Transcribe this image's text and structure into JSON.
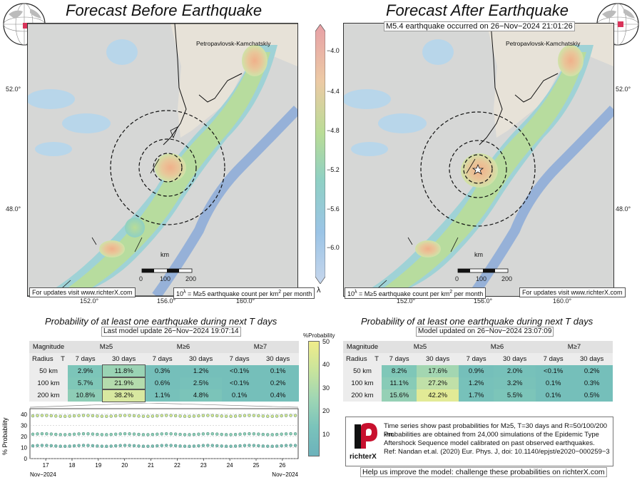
{
  "left": {
    "title": "Forecast Before Earthquake",
    "city": "Petropavlovsk-Kamchatskiy",
    "lat_ticks": [
      "52.0°",
      "48.0°"
    ],
    "lon_ticks": [
      "152.0°",
      "156.0°",
      "160.0°"
    ],
    "scale_unit": "km",
    "scale_ticks": [
      "0",
      "100",
      "200"
    ],
    "note_updates": "For updates visit www.richterX.com",
    "note_units_pre": "10",
    "note_units_sup": "λ",
    "note_units_mid": " = M≥5 earthquake count per km",
    "note_units_sup2": "2",
    "note_units_post": " per month",
    "prob_title": "Probability of at least one earthquake during next T days",
    "update_line": "Last model update 26−Nov−2024 19:07:14"
  },
  "right": {
    "title": "Forecast After Earthquake",
    "event": "M5.4 earthquake occurred on 26−Nov−2024 21:01:26",
    "city": "Petropavlovsk-Kamchatskiy",
    "lat_ticks": [
      "52.0°",
      "48.0°"
    ],
    "lon_ticks": [
      "152.0°",
      "156.0°",
      "160.0°"
    ],
    "scale_unit": "km",
    "scale_ticks": [
      "0",
      "100",
      "200"
    ],
    "note_updates": "For updates visit www.richterX.com",
    "prob_title": "Probability of at least one earthquake during next T days",
    "update_line": "Model updated on 26−Nov−2024 23:07:09"
  },
  "colorbar": {
    "ticks": [
      "−4.0",
      "−4.4",
      "−4.8",
      "−5.2",
      "−5.6",
      "−6.0"
    ],
    "symbol": "λ"
  },
  "table_headers": {
    "magnitude": "Magnitude",
    "radius": "Radius",
    "t": "T",
    "m5": "M≥5",
    "m6": "M≥6",
    "m7": "M≥7",
    "d7": "7 days",
    "d30": "30 days"
  },
  "table_left": {
    "rows": [
      {
        "radius": "50 km",
        "cells": [
          "2.9%",
          "11.8%",
          "0.3%",
          "1.2%",
          "<0.1%",
          "0.1%"
        ]
      },
      {
        "radius": "100 km",
        "cells": [
          "5.7%",
          "21.9%",
          "0.6%",
          "2.5%",
          "<0.1%",
          "0.2%"
        ]
      },
      {
        "radius": "200 km",
        "cells": [
          "10.8%",
          "38.2%",
          "1.1%",
          "4.8%",
          "0.1%",
          "0.4%"
        ]
      }
    ]
  },
  "table_right": {
    "rows": [
      {
        "radius": "50 km",
        "cells": [
          "8.2%",
          "17.6%",
          "0.9%",
          "2.0%",
          "<0.1%",
          "0.2%"
        ]
      },
      {
        "radius": "100 km",
        "cells": [
          "11.1%",
          "27.2%",
          "1.2%",
          "3.2%",
          "0.1%",
          "0.3%"
        ]
      },
      {
        "radius": "200 km",
        "cells": [
          "15.6%",
          "42.2%",
          "1.7%",
          "5.5%",
          "0.1%",
          "0.5%"
        ]
      }
    ]
  },
  "prob_colorbar": {
    "label": "%Probability",
    "ticks": [
      "50",
      "40",
      "30",
      "20",
      "10"
    ]
  },
  "chart_data": {
    "type": "line",
    "ylabel": "% Probability",
    "y_ticks": [
      "0",
      "10",
      "20",
      "30",
      "40"
    ],
    "ylim": [
      0,
      45
    ],
    "x_ticks": [
      "17",
      "18",
      "19",
      "20",
      "21",
      "22",
      "23",
      "24",
      "25",
      "26"
    ],
    "x_start_label": "Nov−2024",
    "x_end_label": "Nov−2024",
    "series_levels": [
      38.5,
      22,
      11.5
    ]
  },
  "info": {
    "logo_text": "richterX",
    "lines": [
      "Time series show past probabilities for M≥5, T=30 days and R=50/100/200 km.",
      "Probabilities are obtained from 24,000 simulations of the Epidemic Type",
      "Aftershock Sequence model calibrated on past observed earthquakes.",
      "Ref: Nandan et.al. (2020) Eur. Phys. J, doi: 10.1140/epjst/e2020−000259−3"
    ],
    "help": "Help us improve the model: challenge these probabilities on richterX.com"
  }
}
